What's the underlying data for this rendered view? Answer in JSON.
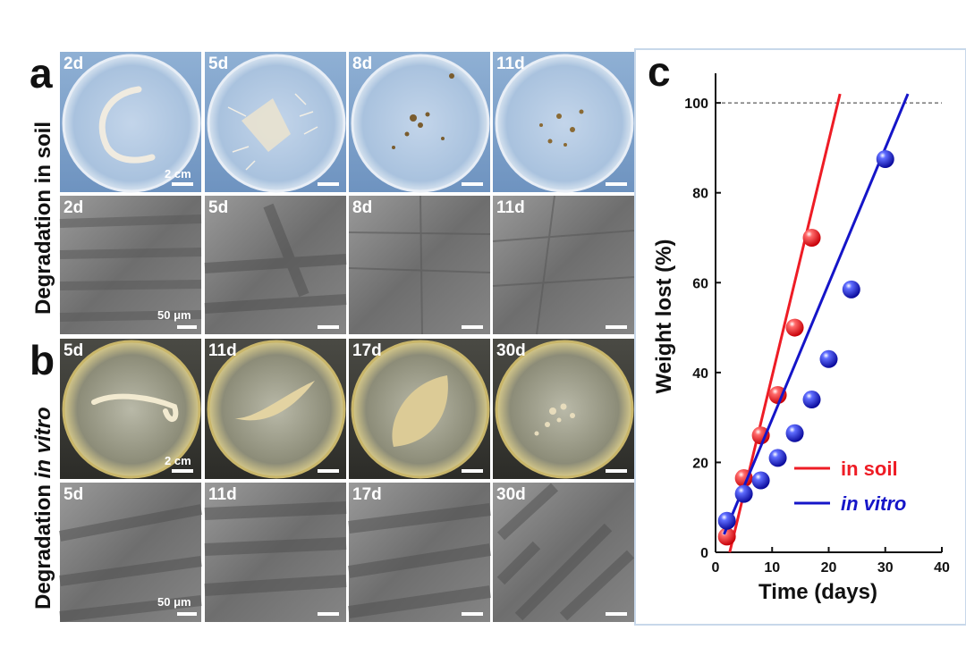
{
  "panel_a": {
    "letter": "a",
    "side_title": "Degradation in soil",
    "photo_days": [
      "2d",
      "5d",
      "8d",
      "11d"
    ],
    "sem_days": [
      "2d",
      "5d",
      "8d",
      "11d"
    ],
    "photo_scale": "2 cm",
    "sem_scale": "50 μm"
  },
  "panel_b": {
    "letter": "b",
    "side_title_plain": "Degradation ",
    "side_title_italic": "in vitro",
    "photo_days": [
      "5d",
      "11d",
      "17d",
      "30d"
    ],
    "sem_days": [
      "5d",
      "11d",
      "17d",
      "30d"
    ],
    "photo_scale": "2 cm",
    "sem_scale": "50 μm"
  },
  "panel_c": {
    "letter": "c"
  },
  "chart_data": {
    "type": "scatter",
    "xlabel": "Time (days)",
    "ylabel": "Weight lost (%)",
    "xlim": [
      0,
      40
    ],
    "ylim": [
      0,
      105
    ],
    "xticks": [
      0,
      10,
      20,
      30,
      40
    ],
    "yticks": [
      0,
      20,
      40,
      60,
      80,
      100
    ],
    "reference_line_y": 100,
    "grid": false,
    "legend_position": "bottom-right",
    "series": [
      {
        "name": "in soil",
        "color": "#ee1c25",
        "italic": false,
        "x": [
          2,
          5,
          8,
          11,
          14,
          17
        ],
        "y": [
          3.5,
          16.5,
          26,
          35,
          50,
          70
        ],
        "fit": {
          "x": [
            2.5,
            22
          ],
          "y": [
            0,
            102
          ]
        }
      },
      {
        "name": "in vitro",
        "color": "#1515c8",
        "italic": true,
        "x": [
          2,
          5,
          8,
          11,
          14,
          17,
          20,
          24,
          30
        ],
        "y": [
          7,
          13,
          16,
          21,
          26.5,
          34,
          43,
          58.5,
          87.5
        ],
        "fit": {
          "x": [
            1.5,
            34
          ],
          "y": [
            4,
            102
          ]
        }
      }
    ]
  }
}
